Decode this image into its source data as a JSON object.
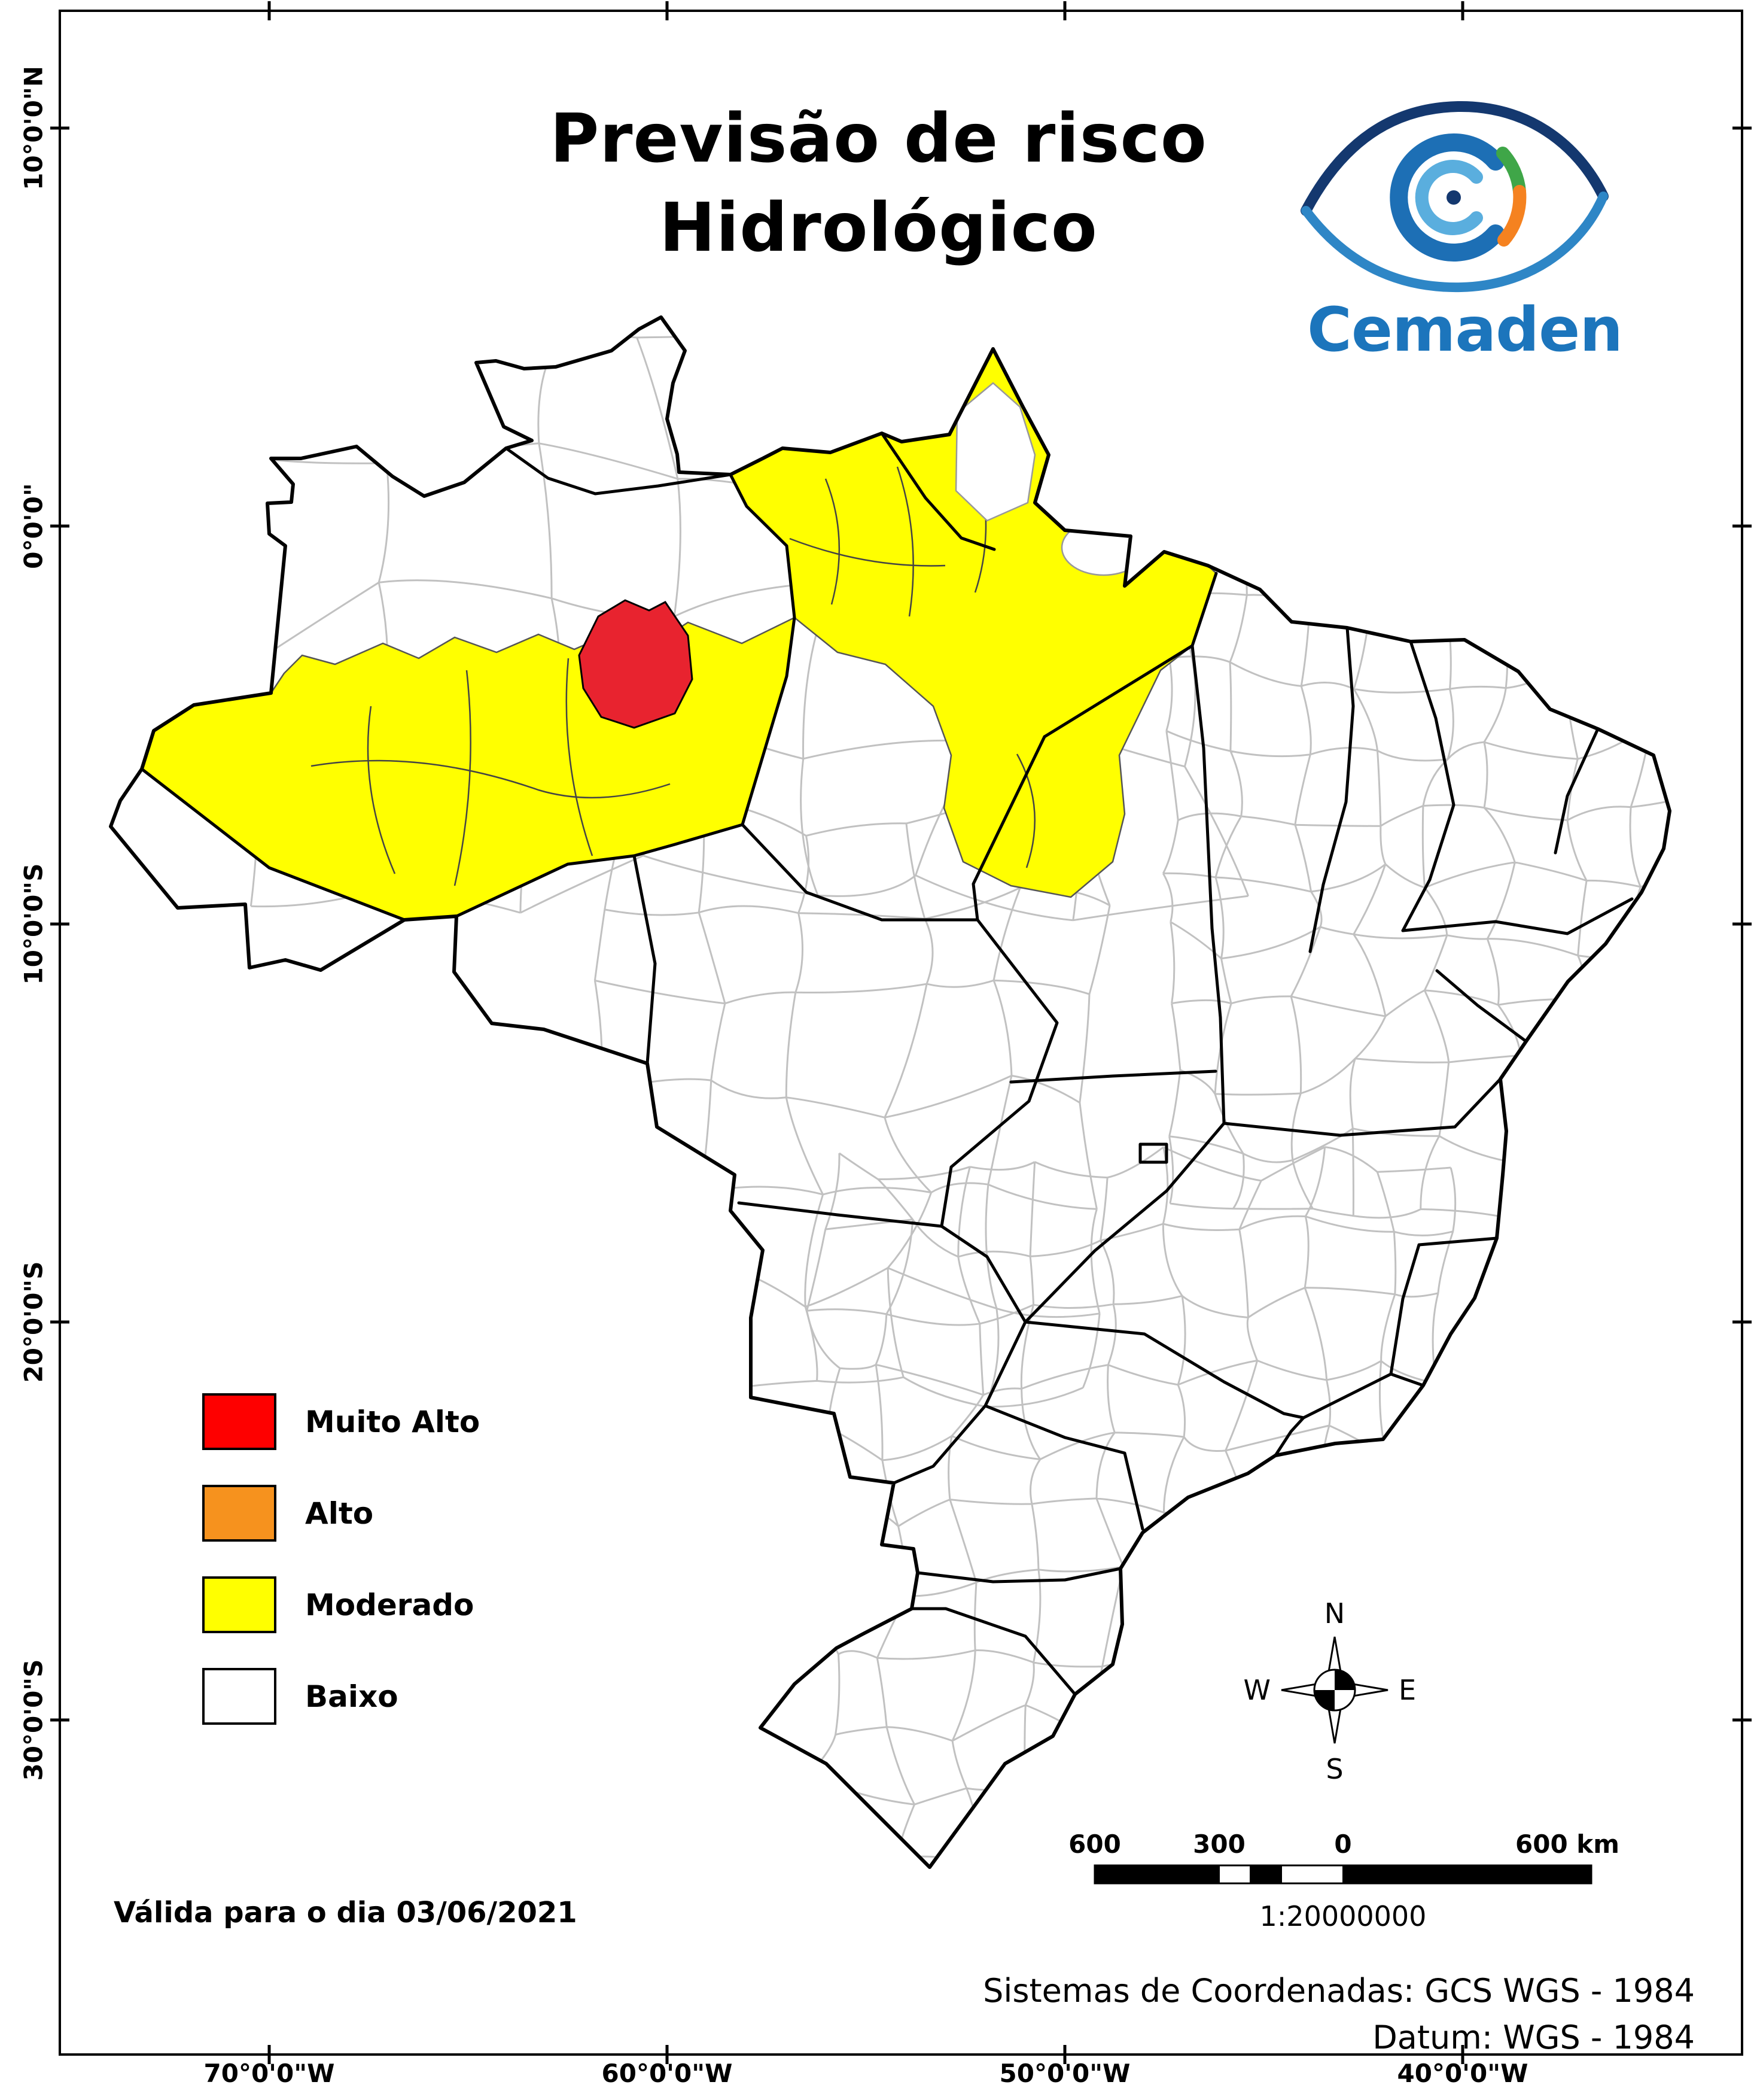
{
  "title": {
    "line1": "Previsão de risco",
    "line2": "Hidrológico"
  },
  "logo": {
    "wordmark": "Cemaden",
    "blue": "#1c75bc"
  },
  "legend": {
    "items": [
      {
        "label": "Muito Alto",
        "color": "#fe0000"
      },
      {
        "label": "Alto",
        "color": "#f6921e"
      },
      {
        "label": "Moderado",
        "color": "#ffff00"
      },
      {
        "label": "Baixo",
        "color": "#ffffff"
      }
    ]
  },
  "map": {
    "moderado_fill": "#ffff00",
    "muito_alto_fill": "#e8232f",
    "regions": [
      {
        "level": "Moderado",
        "area": "southwest Amazon region"
      },
      {
        "level": "Moderado",
        "area": "northern Pará / Amapá region"
      },
      {
        "level": "Muito Alto",
        "area": "central Amazonas region"
      }
    ]
  },
  "axes": {
    "left": [
      "10°0'0\"N",
      "0°0'0\"",
      "10°0'0\"S",
      "20°0'0\"S",
      "30°0'0\"S"
    ],
    "bottom": [
      "70°0'0\"W",
      "60°0'0\"W",
      "50°0'0\"W",
      "40°0'0\"W"
    ]
  },
  "compass": {
    "n": "N",
    "s": "S",
    "e": "E",
    "w": "W"
  },
  "scalebar": {
    "labels": [
      "600",
      "300",
      "0",
      "600 km"
    ],
    "ratio": "1:20000000"
  },
  "validity": "Válida para o dia 03/06/2021",
  "footer": {
    "line1": "Sistemas de Coordenadas: GCS WGS - 1984",
    "line2": "Datum: WGS - 1984"
  }
}
